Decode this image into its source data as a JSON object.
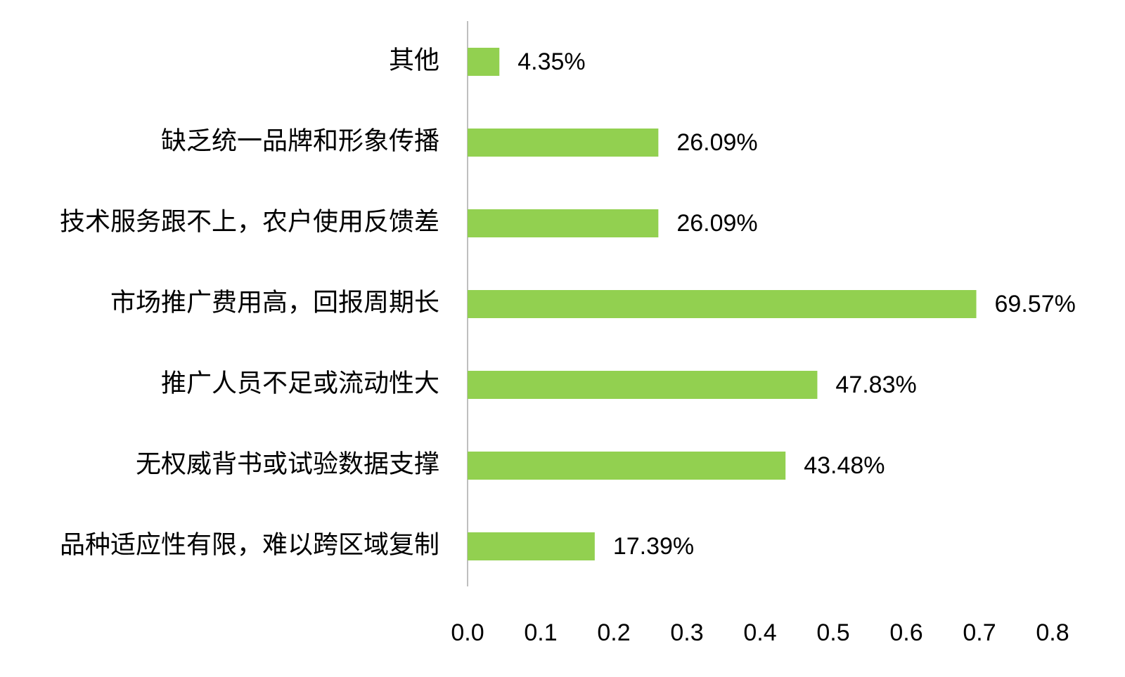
{
  "chart_data": {
    "type": "bar",
    "orientation": "horizontal",
    "categories": [
      "其他",
      "缺乏统一品牌和形象传播",
      "技术服务跟不上，农户使用反馈差",
      "市场推广费用高，回报周期长",
      "推广人员不足或流动性大",
      "无权威背书或试验数据支撑",
      "品种适应性有限，难以跨区域复制"
    ],
    "values": [
      0.0435,
      0.2609,
      0.2609,
      0.6957,
      0.4783,
      0.4348,
      0.1739
    ],
    "value_labels": [
      "4.35%",
      "26.09%",
      "26.09%",
      "69.57%",
      "47.83%",
      "43.48%",
      "17.39%"
    ],
    "color": "#92d050",
    "xlim": [
      0,
      0.8
    ],
    "xticks": [
      {
        "value": 0,
        "label": "0.0"
      },
      0.1,
      0.2,
      0.3,
      0.4,
      0.5,
      0.6,
      0.7,
      0.8
    ],
    "grid": false
  }
}
